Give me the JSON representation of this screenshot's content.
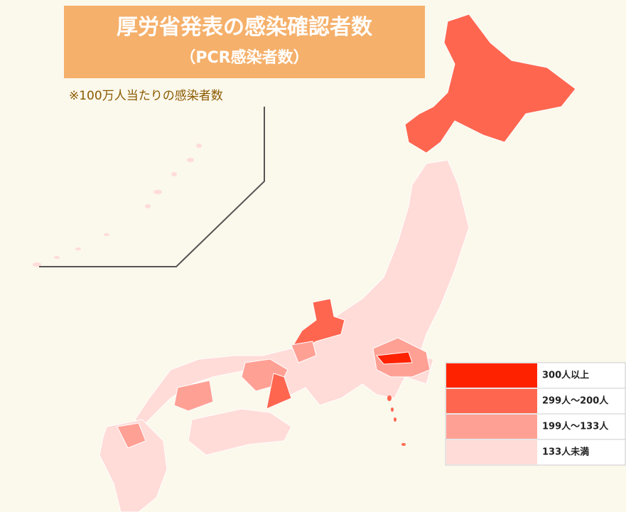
{
  "title": "厚労省発表の感染確認者数",
  "subtitle": "（PCR感染者数）",
  "note": "※100万人当たりの感染者数",
  "legend": [
    {
      "label": "300人以上",
      "color": "#ff2200"
    },
    {
      "label": "299人～200人",
      "color": "#ff6650"
    },
    {
      "label": "199人～133人",
      "color": "#ffa095"
    },
    {
      "label": "133人未満",
      "color": "#ffdcd8"
    }
  ]
}
